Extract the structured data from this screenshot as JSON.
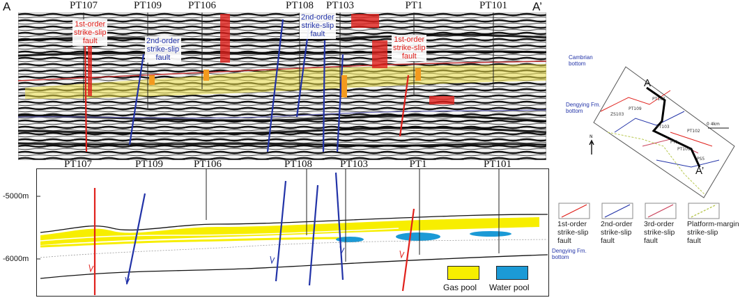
{
  "section_end_labels": {
    "start": "A",
    "end": "A’"
  },
  "seismic_wells": [
    "PT107",
    "PT109",
    "PT106",
    "PT108",
    "PT103",
    "PT1",
    "PT101"
  ],
  "seismic_faults": [
    {
      "text": "1st-order\nstrike-slip\nfault",
      "color": "red"
    },
    {
      "text": "2nd-order\nstrike-slip\nfault",
      "color": "blue"
    },
    {
      "text": "2nd-order\nstrike-slip\nfault",
      "color": "blue"
    },
    {
      "text": "1st-order\nstrike-slip\nfault",
      "color": "red"
    }
  ],
  "horizons": {
    "cambrian": "Cambrian\nbottom",
    "dengying": "Dengying Fm.\nbottom"
  },
  "model_wells": [
    "PT107",
    "PT109",
    "PT106",
    "PT108",
    "PT103",
    "PT1",
    "PT101"
  ],
  "depth_labels": [
    "-5000m",
    "-6000m"
  ],
  "model_horizon": "Dengying Fm.\nbottom",
  "pool_legend": [
    {
      "label": "Gas pool",
      "color": "#f7ee00"
    },
    {
      "label": "Water pool",
      "color": "#1b9ad6"
    }
  ],
  "fault_legend": [
    {
      "label": "1st-order\nstrike-slip\nfault",
      "color": "#e0201b"
    },
    {
      "label": "2nd-order\nstrike-slip\nfault",
      "color": "#2233a8"
    },
    {
      "label": "3rd-order\nstrike-slip\nfault",
      "color": "#c9405a"
    },
    {
      "label": "Platform-margin\nstrike-slip\nfault",
      "color": "#b8c850"
    }
  ],
  "map": {
    "points": [
      "A",
      "A’"
    ],
    "well_labels": [
      "PT107",
      "ZS103",
      "PT109",
      "PT103",
      "PT102",
      "PT1",
      "PT101",
      "PS5"
    ],
    "north": "N",
    "scale": "0     4km"
  }
}
